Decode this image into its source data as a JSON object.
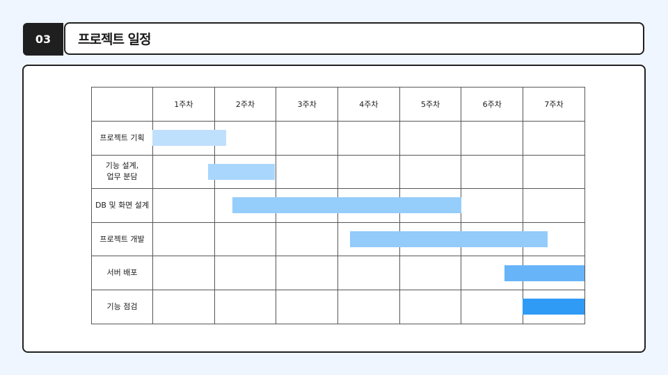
{
  "section": {
    "number": "03",
    "title": "프로젝트 일정"
  },
  "gantt": {
    "weeks": [
      "1주차",
      "2주차",
      "3주차",
      "4주차",
      "5주차",
      "6주차",
      "7주차"
    ],
    "tasks": [
      {
        "label": "프로젝트 기획",
        "start": 0.0,
        "end": 1.2,
        "color": "#bfe0fd"
      },
      {
        "label": "기능 설계,\n업무 분담",
        "start": 0.9,
        "end": 1.98,
        "color": "#a9d6fc"
      },
      {
        "label": "DB 및 화면 설계",
        "start": 1.3,
        "end": 5.0,
        "color": "#95cdfb"
      },
      {
        "label": "프로젝트 개발",
        "start": 3.2,
        "end": 6.4,
        "color": "#93cbfb"
      },
      {
        "label": "서버 배포",
        "start": 5.7,
        "end": 7.0,
        "color": "#67b4f8"
      },
      {
        "label": "기능 점검",
        "start": 6.0,
        "end": 7.0,
        "color": "#2f9bf5"
      }
    ]
  }
}
